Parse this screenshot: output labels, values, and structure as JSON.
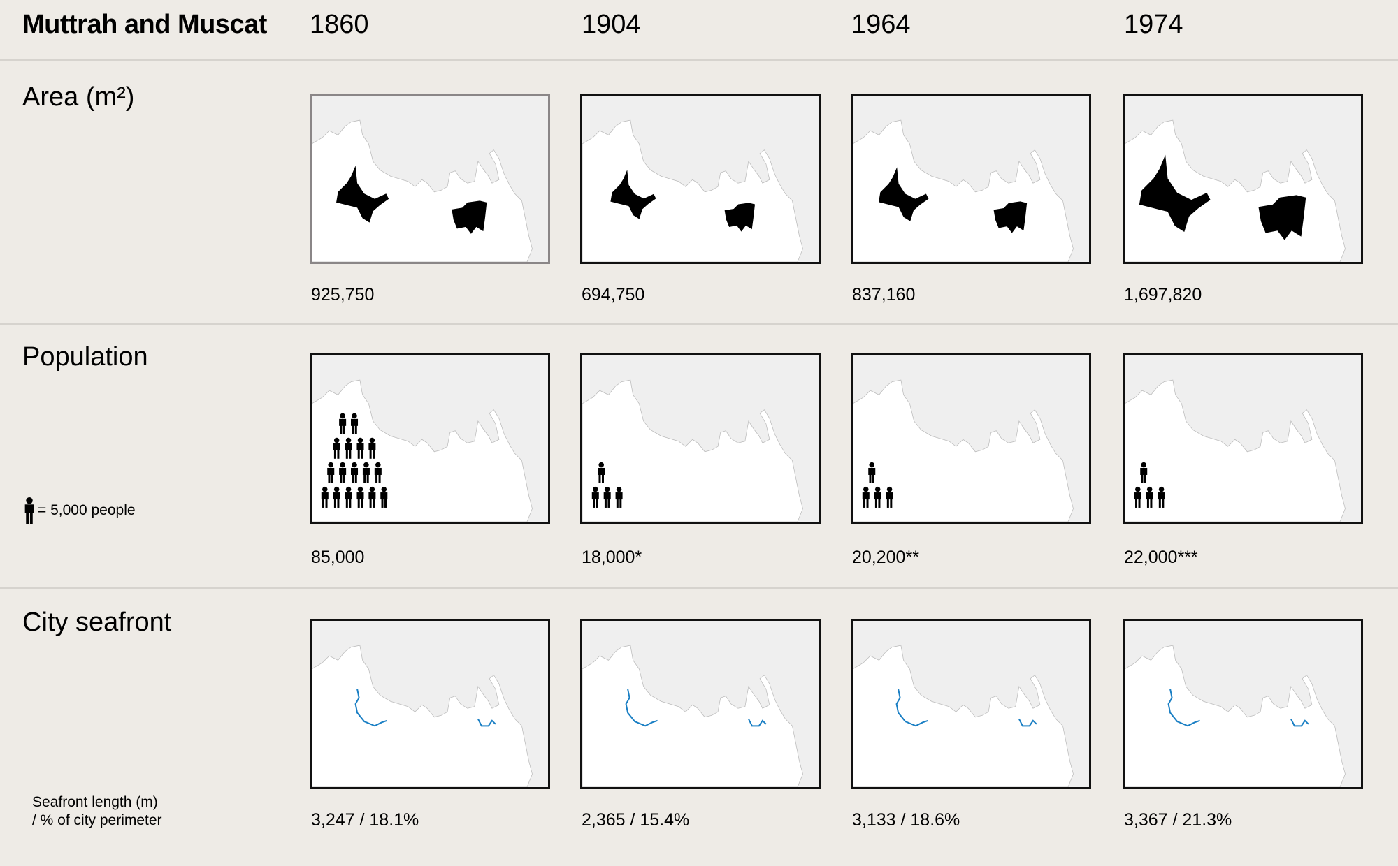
{
  "title": "Muttrah and Muscat",
  "years": [
    "1860",
    "1904",
    "1964",
    "1974"
  ],
  "rows": {
    "area": {
      "label": "Area (m²)",
      "values": [
        "925,750",
        "694,750",
        "837,160",
        "1,697,820"
      ]
    },
    "population": {
      "label": "Population",
      "legend": "= 5,000 people",
      "values": [
        "85,000",
        "18,000*",
        "20,200**",
        "22,000***"
      ]
    },
    "seafront": {
      "label": "City seafront",
      "note_line1": "Seafront length (m)",
      "note_line2": "/  % of city perimeter",
      "values": [
        "3,247 / 18.1%",
        "2,365 / 15.4%",
        "3,133 / 18.6%",
        "3,367 / 21.3%"
      ]
    }
  },
  "colors": {
    "background": "#eeebe6",
    "sea": "#efefef",
    "land": "#ffffff",
    "urban": "#000000",
    "seafront": "#1a7fc4"
  },
  "icons": {
    "person": "person-icon"
  },
  "chart_data": {
    "type": "table",
    "categories": [
      "1860",
      "1904",
      "1964",
      "1974"
    ],
    "series": [
      {
        "name": "Area (m²)",
        "values": [
          925750,
          694750,
          837160,
          1697820
        ]
      },
      {
        "name": "Population",
        "values": [
          85000,
          18000,
          20200,
          22000
        ],
        "icon_counts": [
          17,
          4,
          4,
          4
        ],
        "icon_unit": 5000
      },
      {
        "name": "Seafront length (m)",
        "values": [
          3247,
          2365,
          3133,
          3367
        ]
      },
      {
        "name": "% of city perimeter",
        "values": [
          18.1,
          15.4,
          18.6,
          21.3
        ]
      }
    ]
  }
}
